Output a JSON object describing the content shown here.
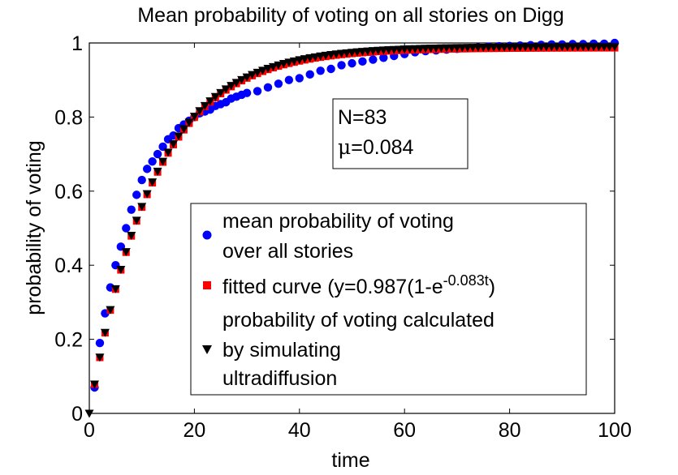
{
  "chart_data": {
    "type": "scatter",
    "title": "Mean probability of voting on all stories on Digg",
    "xlabel": "time",
    "ylabel": "probability of voting",
    "xlim": [
      0,
      100
    ],
    "ylim": [
      0,
      1
    ],
    "xticks": [
      "0",
      "20",
      "40",
      "60",
      "80",
      "100"
    ],
    "yticks": [
      "0",
      "0.2",
      "0.4",
      "0.6",
      "0.8",
      "1"
    ],
    "annotation": {
      "n_label": "N=83",
      "mu_symbol": "μ",
      "mu_value": "=0.084"
    },
    "legend_position": "lower-right",
    "series": [
      {
        "name": "mean probability of voting over all stories",
        "legend_lines": [
          "mean probability of voting",
          "over all stories"
        ],
        "marker": "circle",
        "color": "#0000ff",
        "x": [
          1,
          2,
          3,
          4,
          5,
          6,
          7,
          8,
          9,
          10,
          11,
          12,
          13,
          14,
          15,
          16,
          17,
          18,
          19,
          20,
          21,
          22,
          23,
          24,
          25,
          26,
          27,
          28,
          29,
          30,
          32,
          34,
          36,
          38,
          40,
          42,
          44,
          46,
          48,
          50,
          52,
          54,
          56,
          58,
          60,
          62,
          64,
          66,
          68,
          70,
          72,
          74,
          76,
          78,
          80,
          82,
          84,
          86,
          88,
          90,
          92,
          94,
          96,
          98,
          100
        ],
        "y": [
          0.07,
          0.19,
          0.27,
          0.34,
          0.4,
          0.45,
          0.5,
          0.55,
          0.59,
          0.63,
          0.66,
          0.68,
          0.7,
          0.72,
          0.74,
          0.75,
          0.77,
          0.78,
          0.79,
          0.8,
          0.81,
          0.815,
          0.82,
          0.83,
          0.835,
          0.84,
          0.85,
          0.855,
          0.86,
          0.865,
          0.87,
          0.88,
          0.89,
          0.9,
          0.905,
          0.915,
          0.925,
          0.93,
          0.94,
          0.945,
          0.95,
          0.955,
          0.96,
          0.965,
          0.97,
          0.975,
          0.978,
          0.98,
          0.982,
          0.984,
          0.986,
          0.988,
          0.99,
          0.991,
          0.992,
          0.993,
          0.994,
          0.995,
          0.996,
          0.996,
          0.997,
          0.997,
          0.998,
          0.998,
          1.0
        ]
      },
      {
        "name": "fitted curve (y=0.987(1-e^-0.083t)",
        "legend_lines": [
          "fitted curve (y=0.987(1-e",
          "-0.083t",
          ")"
        ],
        "marker": "square",
        "color": "#ff0000",
        "fit": {
          "a": 0.987,
          "k": 0.083,
          "x_start": 1,
          "x_end": 100,
          "x_step": 1
        }
      },
      {
        "name": "probability of voting calculated by simulating ultradiffusion",
        "legend_lines": [
          "probability of voting calculated",
          "by simulating",
          "ultradiffusion"
        ],
        "marker": "triangle-down",
        "color": "#000000",
        "fit": {
          "a": 0.99,
          "k": 0.083,
          "x_start": 0,
          "x_end": 100,
          "x_step": 1
        }
      }
    ]
  }
}
